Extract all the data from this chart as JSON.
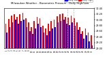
{
  "title": "Milwaukee Weather - Barometric Pressure - Daily High/Low",
  "background_color": "#ffffff",
  "bar_color_high": "#ff0000",
  "bar_color_low": "#0000ff",
  "legend_high": "Daily High",
  "legend_low": "Daily Low",
  "days": [
    1,
    2,
    3,
    4,
    5,
    6,
    7,
    8,
    9,
    10,
    11,
    12,
    13,
    14,
    15,
    16,
    17,
    18,
    19,
    20,
    21,
    22,
    23,
    24,
    25,
    26,
    27,
    28,
    29,
    30,
    31
  ],
  "high_values": [
    29.85,
    30.02,
    30.15,
    30.18,
    30.1,
    30.2,
    30.25,
    30.05,
    29.9,
    29.75,
    29.95,
    30.1,
    30.05,
    29.8,
    29.7,
    29.85,
    29.95,
    30.0,
    30.12,
    30.18,
    30.22,
    30.1,
    30.08,
    30.15,
    30.05,
    29.9,
    29.75,
    29.6,
    29.7,
    29.55,
    29.45
  ],
  "low_values": [
    29.55,
    29.75,
    29.9,
    30.0,
    29.85,
    29.95,
    30.0,
    29.75,
    29.6,
    29.5,
    29.7,
    29.85,
    29.75,
    29.55,
    29.45,
    29.6,
    29.7,
    29.75,
    29.9,
    29.95,
    30.0,
    29.85,
    29.82,
    29.9,
    29.8,
    29.65,
    29.5,
    29.35,
    29.45,
    29.25,
    29.1
  ],
  "ylim_min": 29.0,
  "ylim_max": 30.4,
  "ytick_vals": [
    29.0,
    29.2,
    29.4,
    29.6,
    29.8,
    30.0,
    30.2,
    30.4
  ],
  "ytick_labels": [
    "29.00",
    "29.20",
    "29.40",
    "29.60",
    "29.80",
    "30.00",
    "30.20",
    "30.40"
  ],
  "dashed_vlines_x": [
    21.5,
    23.5
  ],
  "bar_width": 0.42,
  "figsize": [
    1.6,
    0.87
  ],
  "dpi": 100
}
